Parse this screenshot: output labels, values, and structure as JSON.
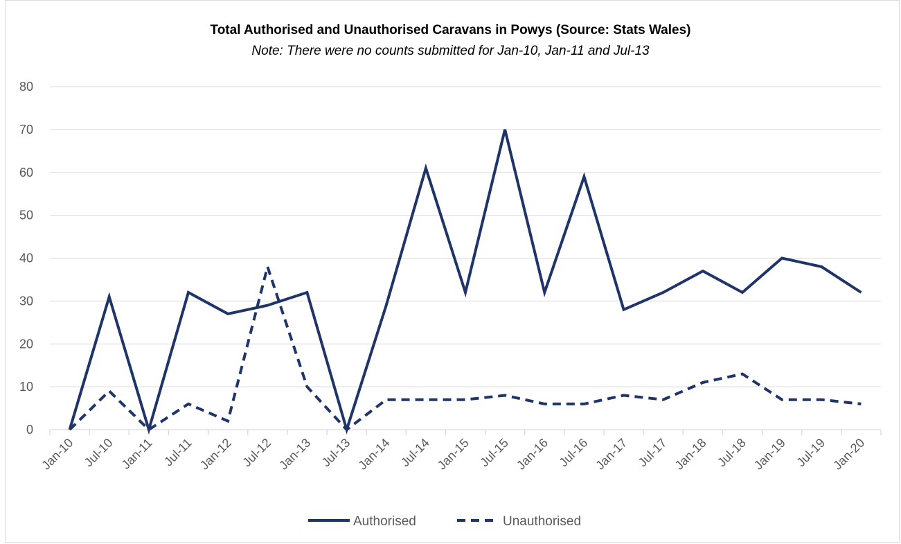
{
  "chart_data": {
    "type": "line",
    "title": "Total Authorised and Unauthorised Caravans in Powys (Source: Stats Wales)",
    "subtitle": "Note: There were no counts submitted for Jan-10, Jan-11 and Jul-13",
    "xlabel": "",
    "ylabel": "",
    "ylim": [
      0,
      80
    ],
    "yticks": [
      "0",
      "10",
      "20",
      "30",
      "40",
      "50",
      "60",
      "70",
      "80"
    ],
    "grid": true,
    "legend_position": "bottom",
    "categories": [
      "Jan-10",
      "Jul-10",
      "Jan-11",
      "Jul-11",
      "Jan-12",
      "Jul-12",
      "Jan-13",
      "Jul-13",
      "Jan-14",
      "Jul-14",
      "Jan-15",
      "Jul-15",
      "Jan-16",
      "Jul-16",
      "Jan-17",
      "Jul-17",
      "Jan-18",
      "Jul-18",
      "Jan-19",
      "Jul-19",
      "Jan-20"
    ],
    "series": [
      {
        "name": "Authorised",
        "style": "solid",
        "values": [
          0,
          31,
          0,
          32,
          27,
          29,
          32,
          0,
          29,
          61,
          32,
          70,
          32,
          59,
          28,
          32,
          37,
          32,
          40,
          38,
          32
        ]
      },
      {
        "name": "Unauthorised",
        "style": "dashed",
        "values": [
          0,
          9,
          0,
          6,
          2,
          38,
          10,
          0,
          7,
          7,
          7,
          8,
          6,
          6,
          8,
          7,
          11,
          13,
          7,
          7,
          6
        ]
      }
    ],
    "colors": {
      "line": "#1f3468",
      "grid": "#d9d9d9",
      "tick_text": "#595959"
    }
  }
}
